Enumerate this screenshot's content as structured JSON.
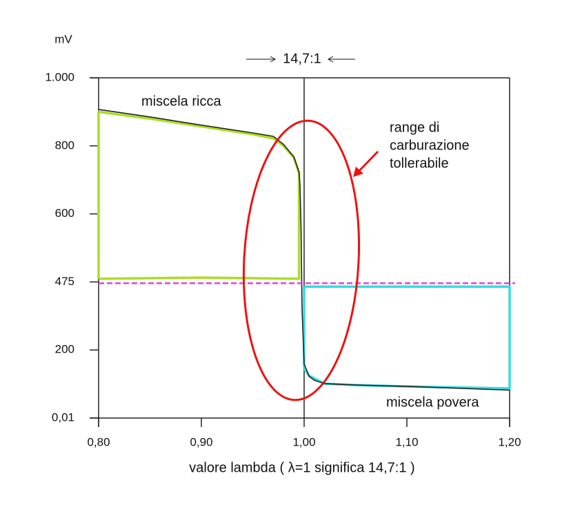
{
  "chart_data": {
    "type": "line",
    "y_unit": "mV",
    "top_label": "14,7:1",
    "xlabel": "valore lambda ( λ=1 significa 14,7:1 )",
    "annotations": {
      "rich": "miscela ricca",
      "lean": "miscela povera",
      "range": [
        "range di",
        "carburazione",
        "tollerabile"
      ]
    },
    "xlim": [
      0.8,
      1.2
    ],
    "xticks": [
      {
        "value": 0.8,
        "label": "0,80"
      },
      {
        "value": 0.9,
        "label": "0,90"
      },
      {
        "value": 1.0,
        "label": "1,00"
      },
      {
        "value": 1.1,
        "label": "1,10"
      },
      {
        "value": 1.2,
        "label": "1,20"
      }
    ],
    "ylim": [
      0.01,
      1000
    ],
    "yticks": [
      {
        "value": 0.01,
        "label": "0,01"
      },
      200,
      475,
      600,
      800,
      {
        "value": 1000,
        "label": "1.000"
      }
    ],
    "reference_lines": {
      "x": 1.0,
      "y": 470,
      "y_color": "#e040e0"
    },
    "series": [
      {
        "color": "#aadd22",
        "x": [
          0.8,
          0.8,
          0.85,
          0.9,
          0.95,
          0.97,
          0.98,
          0.99,
          0.995,
          0.995,
          0.9,
          0.8
        ],
        "values": [
          481,
          900,
          880,
          857,
          834,
          822,
          800,
          765,
          720,
          481,
          483,
          481
        ]
      },
      {
        "color": "#33dddd",
        "x": [
          1.0,
          1.2,
          1.2,
          1.1,
          1.05,
          1.02,
          1.005,
          1.0,
          1.0
        ],
        "values": [
          456,
          456,
          87,
          93,
          97,
          101,
          124,
          145,
          456
        ]
      },
      {
        "color": "#222222",
        "x": [
          0.8,
          0.85,
          0.9,
          0.95,
          0.97,
          0.98,
          0.99,
          0.995,
          0.996,
          0.997,
          0.998,
          1.0,
          1.005,
          1.01,
          1.02,
          1.05,
          1.1,
          1.2
        ],
        "values": [
          907,
          885,
          861,
          838,
          828,
          804,
          768,
          723,
          683,
          576,
          367,
          159,
          122,
          111,
          101,
          97,
          93,
          82
        ]
      }
    ]
  }
}
